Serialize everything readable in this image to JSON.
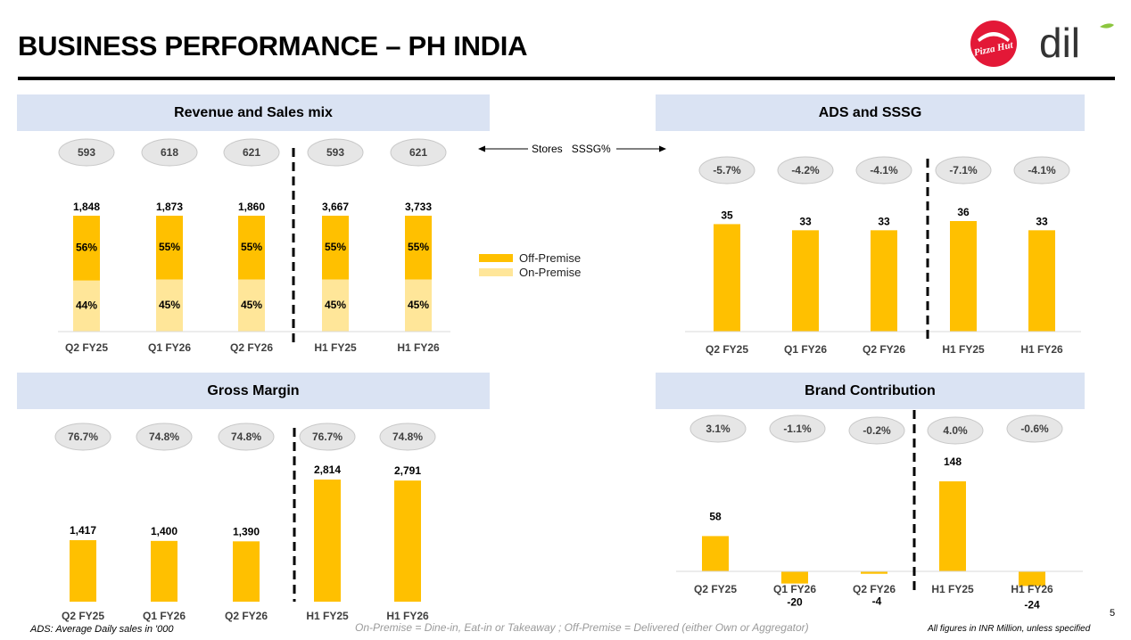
{
  "page": {
    "title": "BUSINESS PERFORMANCE – PH INDIA",
    "logo_pizzahut_text": "Pizza Hut",
    "logo_dil_text": "dil",
    "page_number": "5",
    "footnote_left": "ADS: Average Daily sales in '000",
    "footnote_mid": "On-Premise = Dine-in, Eat-in or Takeaway ; Off-Premise = Delivered (either Own or Aggregator)",
    "footnote_right": "All figures in INR Million, unless  specified",
    "stores_label": "Stores",
    "sssg_label": "SSSG%",
    "colors": {
      "bar": "#ffc000",
      "on_premise": "#ffe699",
      "off_premise": "#ffc000",
      "header_bg": "#dae3f3"
    }
  },
  "chart_data": [
    {
      "id": "revenue",
      "type": "bar",
      "title": "Revenue and Sales mix",
      "categories": [
        "Q2 FY25",
        "Q1 FY26",
        "Q2 FY26",
        "H1 FY25",
        "H1 FY26"
      ],
      "totals": [
        "1,848",
        "1,873",
        "1,860",
        "3,667",
        "3,733"
      ],
      "series": [
        {
          "name": "On-Premise",
          "values": [
            44,
            45,
            45,
            45,
            45
          ],
          "labels": [
            "44%",
            "45%",
            "45%",
            "45%",
            "45%"
          ]
        },
        {
          "name": "Off-Premise",
          "values": [
            56,
            55,
            55,
            55,
            55
          ],
          "labels": [
            "56%",
            "55%",
            "55%",
            "55%",
            "55%"
          ]
        }
      ],
      "stores": [
        "593",
        "618",
        "621",
        "593",
        "621"
      ],
      "legend": [
        "Off-Premise",
        "On-Premise"
      ],
      "ylim": [
        0,
        100
      ]
    },
    {
      "id": "ads",
      "type": "bar",
      "title": "ADS and SSSG",
      "categories": [
        "Q2 FY25",
        "Q1 FY26",
        "Q2 FY26",
        "H1 FY25",
        "H1 FY26"
      ],
      "values": [
        35,
        33,
        33,
        36,
        33
      ],
      "labels": [
        "35",
        "33",
        "33",
        "36",
        "33"
      ],
      "sssg": [
        "-5.7%",
        "-4.2%",
        "-4.1%",
        "-7.1%",
        "-4.1%"
      ],
      "ylim": [
        0,
        40
      ]
    },
    {
      "id": "gross",
      "type": "bar",
      "title": "Gross Margin",
      "categories": [
        "Q2 FY25",
        "Q1 FY26",
        "Q2 FY26",
        "H1 FY25",
        "H1 FY26"
      ],
      "values": [
        1417,
        1400,
        1390,
        2814,
        2791
      ],
      "labels": [
        "1,417",
        "1,400",
        "1,390",
        "2,814",
        "2,791"
      ],
      "margins": [
        "76.7%",
        "74.8%",
        "74.8%",
        "76.7%",
        "74.8%"
      ],
      "ylim": [
        0,
        3200
      ]
    },
    {
      "id": "brand",
      "type": "bar",
      "title": "Brand Contribution",
      "categories": [
        "Q2 FY25",
        "Q1 FY26",
        "Q2 FY26",
        "H1 FY25",
        "H1 FY26"
      ],
      "values": [
        58,
        -20,
        -4,
        148,
        -24
      ],
      "labels": [
        "58",
        "-20",
        "-4",
        "148",
        "-24"
      ],
      "margins": [
        "3.1%",
        "-1.1%",
        "-0.2%",
        "4.0%",
        "-0.6%"
      ],
      "ylim": [
        -30,
        160
      ]
    }
  ]
}
